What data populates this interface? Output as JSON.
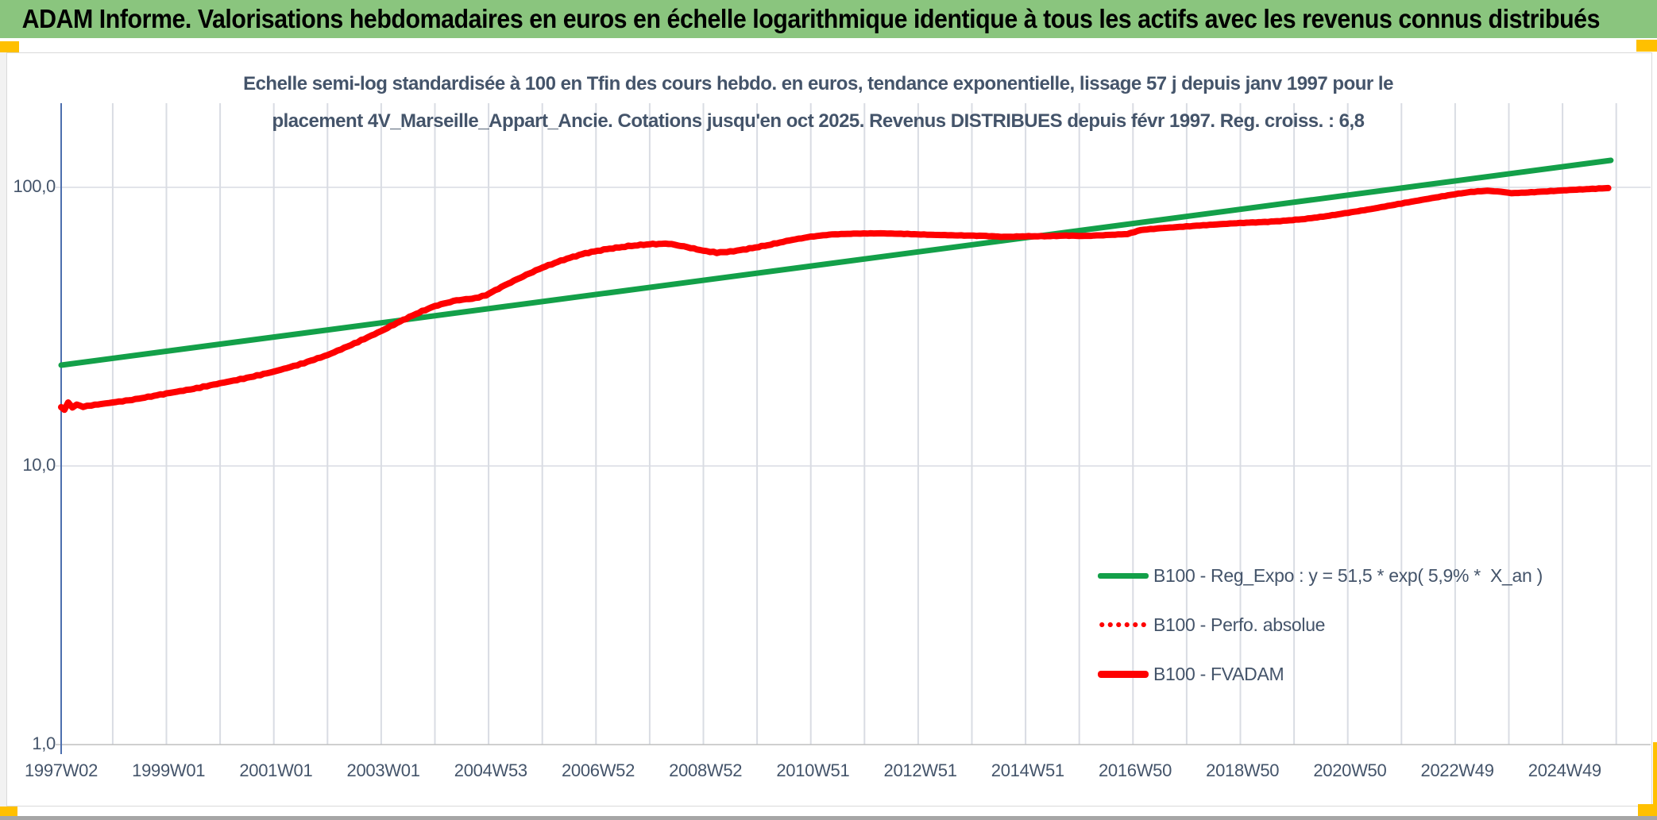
{
  "colors": {
    "accent": "#FFC000",
    "header_bg": "#8AC57E",
    "chart_text": "#44546A",
    "green_line": "#13A049",
    "red_line": "#FE0000",
    "gridline": "#D9DCE3",
    "axis_line": "#4D6FAE",
    "frame_border": "#D9D9D9",
    "baseline": "#BFBFBF",
    "bottom_bar": "#A6A6A6"
  },
  "header": {
    "title": "ADAM Informe. Valorisations hebdomadaires en euros en échelle logarithmique identique à tous les actifs avec les revenus connus distribués"
  },
  "chart_title": {
    "line1": "Echelle semi-log standardisée à 100 en Tfin des cours hebdo. en euros, tendance exponentielle, lissage 57 j depuis janv 1997 pour le",
    "line2": "placement 4V_Marseille_Appart_Ancie. Cotations jusqu'en oct 2025. Revenus DISTRIBUES depuis févr 1997. Reg. croiss. : 6,8"
  },
  "legend": [
    {
      "label": "B100 - Reg_Expo : y = 51,5 * exp( 5,9% *  X_an )",
      "style": "solid",
      "color": "#13A049"
    },
    {
      "label": "B100 - Perfo. absolue",
      "style": "dotted",
      "color": "#FE0000"
    },
    {
      "label": "B100 - FVADAM",
      "style": "solid",
      "color": "#FE0000"
    }
  ],
  "chart_data": {
    "type": "line",
    "title": "Echelle semi-log standardisée à 100 en Tfin — placement 4V_Marseille_Appart_Ancie",
    "x_axis": {
      "tick_labels": [
        "1997W02",
        "1999W01",
        "2001W01",
        "2003W01",
        "2004W53",
        "2006W52",
        "2008W52",
        "2010W51",
        "2012W51",
        "2014W51",
        "2016W50",
        "2018W50",
        "2020W50",
        "2022W49",
        "2024W49"
      ],
      "tick_interval_years": 2,
      "start_year": 1997.04,
      "end_year": 2025.9,
      "gridlines": {
        "interval_years": 1,
        "first_year": 1998,
        "last_year": 2026
      }
    },
    "y_axis": {
      "scale": "log",
      "min": 1,
      "max": 200,
      "tick_values": [
        100,
        10,
        1
      ],
      "tick_labels": [
        "100,0",
        "10,0",
        "1,0"
      ]
    },
    "grid": "on",
    "legend_position": "inside-right-bottom",
    "series": [
      {
        "name": "B100 - Reg_Expo",
        "color": "#13A049",
        "style": "solid",
        "width": 7,
        "formula": "y = 51,5 * exp( 5,9% * X_an )",
        "base": 51.5,
        "growth_rate_pct_per_year": 5.9,
        "points": [
          [
            1997.04,
            23.0
          ],
          [
            2025.9,
            125.0
          ]
        ]
      },
      {
        "name": "B100 - Perfo. absolue",
        "color": "#FE0000",
        "style": "dotted",
        "width": 5,
        "coincides_with": "B100 - FVADAM",
        "points_ref": 2
      },
      {
        "name": "B100 - FVADAM",
        "color": "#FE0000",
        "style": "solid",
        "width": 8,
        "points": [
          [
            1997.04,
            16.3
          ],
          [
            1997.1,
            15.9
          ],
          [
            1997.17,
            16.9
          ],
          [
            1997.25,
            16.2
          ],
          [
            1997.33,
            16.6
          ],
          [
            1997.45,
            16.3
          ],
          [
            1997.6,
            16.5
          ],
          [
            1997.8,
            16.7
          ],
          [
            1998.0,
            16.9
          ],
          [
            1998.3,
            17.2
          ],
          [
            1998.6,
            17.6
          ],
          [
            1999.0,
            18.2
          ],
          [
            1999.5,
            18.9
          ],
          [
            2000.0,
            19.8
          ],
          [
            2000.5,
            20.7
          ],
          [
            2001.0,
            21.8
          ],
          [
            2001.5,
            23.2
          ],
          [
            2002.0,
            25.0
          ],
          [
            2002.5,
            27.5
          ],
          [
            2003.0,
            30.5
          ],
          [
            2003.35,
            33.0
          ],
          [
            2003.7,
            35.5
          ],
          [
            2004.0,
            37.5
          ],
          [
            2004.4,
            39.3
          ],
          [
            2004.75,
            40.0
          ],
          [
            2004.95,
            41.0
          ],
          [
            2005.3,
            44.5
          ],
          [
            2005.7,
            48.5
          ],
          [
            2006.0,
            51.5
          ],
          [
            2006.4,
            55.0
          ],
          [
            2006.8,
            58.0
          ],
          [
            2007.2,
            60.0
          ],
          [
            2007.6,
            61.5
          ],
          [
            2008.0,
            62.5
          ],
          [
            2008.35,
            62.8
          ],
          [
            2008.7,
            61.0
          ],
          [
            2009.0,
            59.2
          ],
          [
            2009.25,
            58.3
          ],
          [
            2009.5,
            58.8
          ],
          [
            2009.8,
            60.0
          ],
          [
            2010.2,
            62.0
          ],
          [
            2010.6,
            64.5
          ],
          [
            2011.0,
            66.5
          ],
          [
            2011.4,
            67.8
          ],
          [
            2011.8,
            68.2
          ],
          [
            2012.3,
            68.4
          ],
          [
            2012.8,
            68.0
          ],
          [
            2013.3,
            67.5
          ],
          [
            2013.8,
            67.2
          ],
          [
            2014.2,
            67.0
          ],
          [
            2014.6,
            66.4
          ],
          [
            2015.0,
            66.7
          ],
          [
            2015.4,
            66.8
          ],
          [
            2015.75,
            67.1
          ],
          [
            2016.1,
            66.9
          ],
          [
            2016.5,
            67.4
          ],
          [
            2016.9,
            68.0
          ],
          [
            2017.15,
            70.3
          ],
          [
            2017.5,
            71.3
          ],
          [
            2018.0,
            72.4
          ],
          [
            2018.5,
            73.5
          ],
          [
            2019.0,
            74.5
          ],
          [
            2019.4,
            75.0
          ],
          [
            2019.8,
            75.8
          ],
          [
            2020.2,
            77.0
          ],
          [
            2020.6,
            78.8
          ],
          [
            2021.0,
            81.0
          ],
          [
            2021.5,
            84.0
          ],
          [
            2022.0,
            87.5
          ],
          [
            2022.5,
            91.0
          ],
          [
            2023.0,
            94.5
          ],
          [
            2023.3,
            96.3
          ],
          [
            2023.6,
            97.2
          ],
          [
            2023.85,
            96.5
          ],
          [
            2024.05,
            95.3
          ],
          [
            2024.3,
            95.7
          ],
          [
            2024.6,
            96.5
          ],
          [
            2024.9,
            97.2
          ],
          [
            2025.2,
            98.0
          ],
          [
            2025.5,
            98.6
          ],
          [
            2025.85,
            99.4
          ]
        ]
      }
    ]
  }
}
